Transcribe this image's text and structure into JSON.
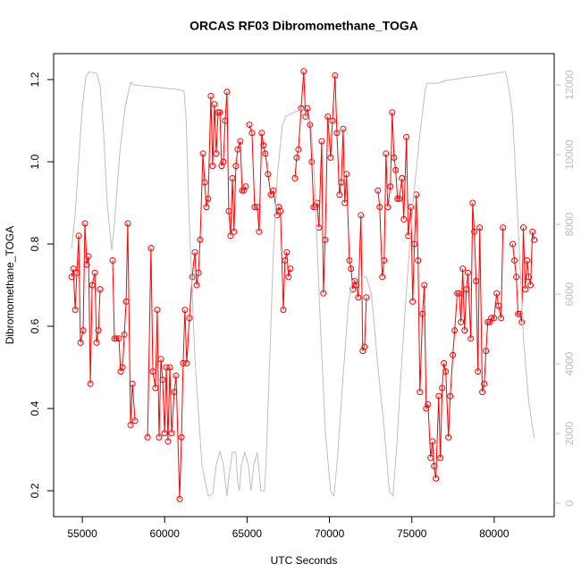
{
  "chart_data": {
    "type": "line",
    "title": "ORCAS RF03 Dibromomethane_TOGA",
    "xlabel": "UTC Seconds",
    "ylabel": "Dibromomethane_TOGA",
    "xlim": [
      53260,
      83640
    ],
    "ylim": [
      0.137,
      1.263
    ],
    "y2lim": [
      -385,
      12900
    ],
    "xticks": [
      55000,
      60000,
      65000,
      70000,
      75000,
      80000
    ],
    "yticks": [
      0.2,
      0.4,
      0.6,
      0.8,
      {
        "value": 1,
        "label": "1.0"
      },
      1.2
    ],
    "y2ticks": [
      0,
      2000,
      4000,
      6000,
      8000,
      10000,
      12000
    ],
    "series": [
      {
        "color": "#ff0000",
        "markers": true,
        "x": [
          54350,
          54460,
          54570,
          54670,
          54780,
          54890,
          55050,
          55160,
          55270,
          55380,
          55490,
          55600,
          55760,
          55870,
          55980,
          56080,
          56460,
          56840,
          56950,
          57060,
          57220,
          57330,
          57440,
          57550,
          57660,
          57760,
          57930,
          58040,
          58200,
          58580,
          58960,
          59170,
          59280,
          59440,
          59550,
          59660,
          59770,
          59880,
          59990,
          60100,
          60200,
          60310,
          60420,
          60580,
          60690,
          60910,
          61020,
          61120,
          61230,
          61340,
          61500,
          61670,
          61830,
          61940,
          62050,
          62150,
          62320,
          62430,
          62530,
          62640,
          62800,
          62910,
          63020,
          63130,
          63240,
          63350,
          63460,
          63560,
          63670,
          63780,
          63890,
          64000,
          64110,
          64210,
          64320,
          64430,
          64590,
          64700,
          64810,
          64920,
          65030,
          65140,
          65300,
          65460,
          65620,
          65730,
          65890,
          66000,
          66110,
          66270,
          66440,
          66600,
          66820,
          66920,
          67030,
          67200,
          67300,
          67410,
          67520,
          67630,
          67740,
          67900,
          68010,
          68120,
          68280,
          68440,
          68550,
          68660,
          68820,
          68930,
          69040,
          69150,
          69250,
          69360,
          69530,
          69630,
          69740,
          69900,
          70070,
          70180,
          70340,
          70450,
          70610,
          70720,
          70830,
          70930,
          71040,
          71210,
          71310,
          71420,
          71530,
          71640,
          71750,
          71910,
          72020,
          72130,
          72240,
          72560,
          72940,
          73050,
          73210,
          73320,
          73430,
          73540,
          73700,
          73810,
          73920,
          74020,
          74130,
          74240,
          74400,
          74510,
          74670,
          74780,
          74950,
          75050,
          75160,
          75270,
          75380,
          75490,
          75650,
          75760,
          75870,
          75980,
          76140,
          76250,
          76350,
          76460,
          76630,
          76730,
          76840,
          76950,
          77060,
          77220,
          77330,
          77490,
          77600,
          77760,
          77870,
          77980,
          78090,
          78200,
          78310,
          78410,
          78580,
          78690,
          78790,
          78900,
          79010,
          79120,
          79280,
          79390,
          79500,
          79610,
          79720,
          79820,
          79990,
          80150,
          80260,
          80420,
          80530,
          80800,
          81120,
          81230,
          81340,
          81450,
          81560,
          81670,
          81770,
          81880,
          81990,
          82100,
          82210,
          82320,
          82430
        ],
        "values": [
          0.72,
          0.74,
          0.64,
          0.73,
          0.82,
          0.56,
          0.59,
          0.85,
          0.75,
          0.77,
          0.46,
          0.7,
          0.73,
          0.56,
          0.59,
          0.69,
          null,
          0.76,
          0.57,
          0.57,
          0.57,
          0.49,
          0.5,
          0.58,
          0.66,
          0.85,
          0.36,
          0.46,
          0.37,
          null,
          0.33,
          0.79,
          0.49,
          0.45,
          0.64,
          0.33,
          0.52,
          0.47,
          0.34,
          0.5,
          0.32,
          0.5,
          0.34,
          0.44,
          0.48,
          0.18,
          0.33,
          0.51,
          0.64,
          0.51,
          0.62,
          0.72,
          0.78,
          0.7,
          0.73,
          0.81,
          1.02,
          0.95,
          0.89,
          0.91,
          1.16,
          0.99,
          1.14,
          1.02,
          1.12,
          1.12,
          0.99,
          1.0,
          1.1,
          1.17,
          0.88,
          0.82,
          0.96,
          0.83,
          0.99,
          1.03,
          1.05,
          0.93,
          0.93,
          0.94,
          null,
          1.09,
          1.07,
          0.89,
          0.89,
          0.83,
          1.07,
          1.04,
          1.02,
          0.97,
          0.92,
          0.93,
          0.87,
          0.89,
          0.88,
          0.64,
          0.76,
          0.78,
          0.72,
          0.74,
          null,
          0.96,
          1.01,
          1.03,
          1.13,
          1.22,
          1.11,
          1.13,
          1.09,
          1.0,
          0.89,
          0.89,
          0.9,
          0.84,
          1.05,
          0.68,
          0.81,
          1.11,
          1.01,
          1.1,
          1.21,
          1.07,
          0.92,
          0.95,
          1.08,
          0.9,
          0.97,
          0.76,
          0.74,
          0.69,
          0.71,
          0.7,
          0.67,
          0.87,
          0.54,
          0.55,
          0.67,
          null,
          0.93,
          0.89,
          0.72,
          0.76,
          1.02,
          0.89,
          0.94,
          1.12,
          1.01,
          0.98,
          0.91,
          0.91,
          0.96,
          0.86,
          1.06,
          0.82,
          0.89,
          0.66,
          0.8,
          0.92,
          0.76,
          0.44,
          0.63,
          0.7,
          0.4,
          0.41,
          0.28,
          0.32,
          0.26,
          0.23,
          0.43,
          0.28,
          0.45,
          0.51,
          0.49,
          0.33,
          0.43,
          0.53,
          0.59,
          0.68,
          0.68,
          0.61,
          0.74,
          0.59,
          0.69,
          0.73,
          0.57,
          0.9,
          0.83,
          0.71,
          0.49,
          0.84,
          0.44,
          0.46,
          0.54,
          0.61,
          0.61,
          0.62,
          0.62,
          0.68,
          0.65,
          0.62,
          0.84,
          null,
          0.8,
          0.76,
          0.72,
          0.63,
          0.63,
          0.61,
          0.84,
          0.69,
          0.76,
          0.72,
          0.7,
          0.83,
          0.81
        ]
      },
      {
        "color": "#bebebe",
        "axis": "y2",
        "markers": false,
        "x": [
          54350,
          54570,
          54780,
          55000,
          55220,
          55430,
          55870,
          56080,
          56300,
          56520,
          56790,
          56950,
          57280,
          57600,
          57930,
          58140,
          59230,
          60850,
          61180,
          61290,
          61500,
          61830,
          62260,
          62640,
          62910,
          63130,
          63350,
          63560,
          63780,
          63890,
          64110,
          64320,
          64430,
          64540,
          64650,
          64860,
          65080,
          65240,
          65410,
          65620,
          65840,
          66060,
          66170,
          66380,
          66600,
          66820,
          67140,
          67360,
          67900,
          68440,
          68880,
          69090,
          69420,
          69740,
          70070,
          70280,
          70500,
          70830,
          71150,
          71370,
          71690,
          72240,
          72560,
          72890,
          73320,
          73640,
          73860,
          74080,
          74400,
          74730,
          75050,
          75490,
          75810,
          75920,
          76570,
          77110,
          78200,
          79280,
          80370,
          80690,
          80910,
          81120,
          81450,
          81780,
          82100,
          82430
        ],
        "values": [
          7310,
          8280,
          9820,
          11360,
          12260,
          12380,
          12330,
          12000,
          10590,
          8540,
          7260,
          8030,
          10080,
          11360,
          12080,
          12000,
          11950,
          11870,
          11820,
          11100,
          8030,
          4180,
          1100,
          210,
          260,
          1100,
          1490,
          1100,
          210,
          720,
          1460,
          1460,
          590,
          360,
          1100,
          1460,
          1100,
          360,
          1100,
          1460,
          360,
          360,
          1360,
          4180,
          7260,
          9310,
          10850,
          11100,
          11230,
          11310,
          10850,
          9310,
          5460,
          2130,
          330,
          210,
          1360,
          3670,
          5720,
          6360,
          6490,
          6490,
          5970,
          4180,
          2130,
          330,
          210,
          1620,
          4180,
          6490,
          8540,
          10590,
          11870,
          12050,
          12050,
          12130,
          12210,
          12280,
          12360,
          12380,
          11870,
          11100,
          8030,
          4690,
          2900,
          1870
        ]
      }
    ]
  }
}
